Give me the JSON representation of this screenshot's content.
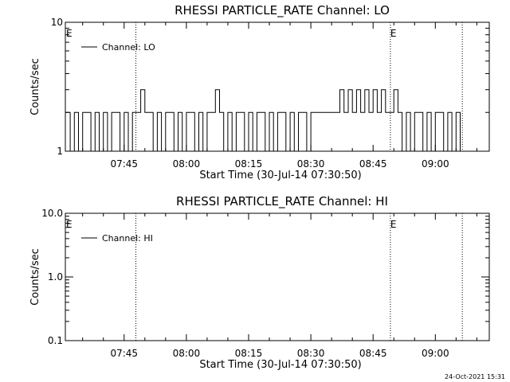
{
  "footer": {
    "timestamp": "24-Oct-2021 15:31"
  },
  "chart_data": [
    {
      "type": "line",
      "title": "RHESSI PARTICLE_RATE Channel: LO",
      "xlabel": "Start Time (30-Jul-14 07:30:50)",
      "ylabel": "Counts/sec",
      "yscale": "log",
      "ylim": [
        1,
        10
      ],
      "ytick_values": [
        1,
        10
      ],
      "ytick_labels": [
        "1",
        "10"
      ],
      "xlim": [
        "07:30:50",
        "09:13:00"
      ],
      "xtick_labels": [
        "07:45",
        "08:00",
        "08:15",
        "08:30",
        "08:45",
        "09:00"
      ],
      "markers": [
        {
          "label": "E",
          "time": "07:30:50"
        },
        {
          "label": "E",
          "time": "08:49:10"
        }
      ],
      "dotted_lines": [
        "07:47:50",
        "08:49:10",
        "09:06:30"
      ],
      "legend": {
        "position": "top-left",
        "entries": [
          "Channel: LO"
        ]
      },
      "series": [
        {
          "name": "Channel: LO",
          "note": "minute-sampled step trace, values 1 to 3 counts/sec",
          "x": [
            "07:31",
            "07:32",
            "07:33",
            "07:34",
            "07:35",
            "07:36",
            "07:37",
            "07:38",
            "07:39",
            "07:40",
            "07:41",
            "07:42",
            "07:43",
            "07:44",
            "07:45",
            "07:46",
            "07:47",
            "07:48",
            "07:49",
            "07:50",
            "07:51",
            "07:52",
            "07:53",
            "07:54",
            "07:55",
            "07:56",
            "07:57",
            "07:58",
            "07:59",
            "08:00",
            "08:01",
            "08:02",
            "08:03",
            "08:04",
            "08:05",
            "08:06",
            "08:07",
            "08:08",
            "08:09",
            "08:10",
            "08:11",
            "08:12",
            "08:13",
            "08:14",
            "08:15",
            "08:16",
            "08:17",
            "08:18",
            "08:19",
            "08:20",
            "08:21",
            "08:22",
            "08:23",
            "08:24",
            "08:25",
            "08:26",
            "08:27",
            "08:28",
            "08:29",
            "08:30",
            "08:31",
            "08:32",
            "08:33",
            "08:34",
            "08:35",
            "08:36",
            "08:37",
            "08:38",
            "08:39",
            "08:40",
            "08:41",
            "08:42",
            "08:43",
            "08:44",
            "08:45",
            "08:46",
            "08:47",
            "08:48",
            "08:49",
            "08:50",
            "08:51",
            "08:52",
            "08:53",
            "08:54",
            "08:55",
            "08:56",
            "08:57",
            "08:58",
            "08:59",
            "09:00",
            "09:01",
            "09:02",
            "09:03",
            "09:04",
            "09:05",
            "09:06"
          ],
          "y": [
            2,
            1,
            2,
            1,
            2,
            2,
            1,
            2,
            1,
            2,
            1,
            2,
            2,
            1,
            2,
            1,
            2,
            2,
            3,
            2,
            2,
            1,
            2,
            1,
            2,
            2,
            1,
            2,
            1,
            2,
            2,
            1,
            2,
            1,
            2,
            2,
            3,
            2,
            1,
            2,
            1,
            2,
            2,
            1,
            2,
            1,
            2,
            2,
            1,
            2,
            1,
            2,
            2,
            1,
            2,
            1,
            2,
            2,
            1,
            2,
            2,
            2,
            2,
            2,
            2,
            2,
            3,
            2,
            3,
            2,
            3,
            2,
            3,
            2,
            3,
            2,
            3,
            2,
            2,
            3,
            2,
            1,
            2,
            1,
            2,
            2,
            1,
            2,
            1,
            2,
            2,
            1,
            2,
            1,
            2,
            1
          ]
        }
      ]
    },
    {
      "type": "line",
      "title": "RHESSI PARTICLE_RATE Channel: HI",
      "xlabel": "Start Time (30-Jul-14 07:30:50)",
      "ylabel": "Counts/sec",
      "yscale": "log",
      "ylim": [
        0.1,
        10
      ],
      "ytick_values": [
        0.1,
        1,
        10
      ],
      "ytick_labels": [
        "0.1",
        "1.0",
        "10.0"
      ],
      "xlim": [
        "07:30:50",
        "09:13:00"
      ],
      "xtick_labels": [
        "07:45",
        "08:00",
        "08:15",
        "08:30",
        "08:45",
        "09:00"
      ],
      "markers": [
        {
          "label": "E",
          "time": "07:30:50"
        },
        {
          "label": "E",
          "time": "08:49:10"
        }
      ],
      "dotted_lines": [
        "07:47:50",
        "08:49:10",
        "09:06:30"
      ],
      "legend": {
        "position": "top-left",
        "entries": [
          "Channel: HI"
        ]
      },
      "series": [
        {
          "name": "Channel: HI",
          "x": [],
          "y": []
        }
      ]
    }
  ]
}
